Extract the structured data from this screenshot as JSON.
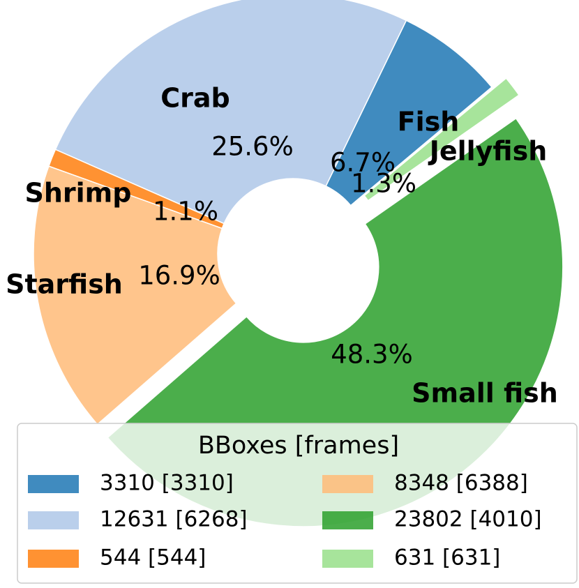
{
  "chart_data": {
    "type": "pie",
    "categories": [
      "Fish",
      "Crab",
      "Shrimp",
      "Starfish",
      "Small fish",
      "Jellyfish"
    ],
    "values": [
      6.7,
      25.6,
      1.1,
      16.9,
      48.3,
      1.3
    ],
    "value_labels": [
      "6.7%",
      "25.6%",
      "1.1%",
      "16.9%",
      "48.3%",
      "1.3%"
    ],
    "colors": [
      "#1f77b4",
      "#aec7e8",
      "#ff7f0e",
      "#ffbb78",
      "#2ca02c",
      "#98df8a"
    ],
    "legend": {
      "title": "BBoxes [frames]",
      "labels": [
        "3310 [3310]",
        "12631 [6268]",
        "544 [544]",
        "8348 [6388]",
        "23802 [4010]",
        "631 [631]"
      ]
    }
  }
}
